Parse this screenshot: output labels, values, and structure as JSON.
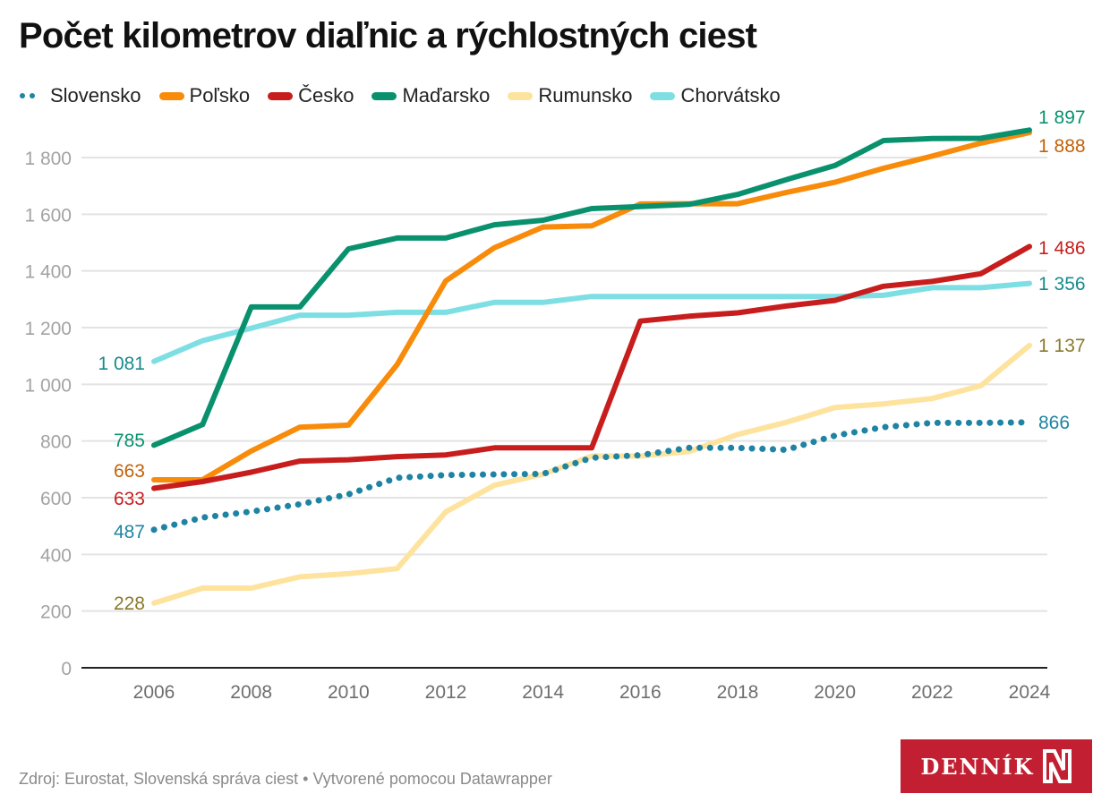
{
  "title": "Počet kilometrov diaľnic a rýchlostných ciest",
  "footer": "Zdroj: Eurostat, Slovenská správa ciest • Vytvorené pomocou Datawrapper",
  "logo": {
    "text": "DENNÍK",
    "glyph": "N",
    "background": "#c22032"
  },
  "legend": [
    {
      "name": "Slovensko",
      "color": "#1f84a3",
      "style": "dotted"
    },
    {
      "name": "Poľsko",
      "color": "#f88b0a",
      "style": "solid"
    },
    {
      "name": "Česko",
      "color": "#c71e1d",
      "style": "solid"
    },
    {
      "name": "Maďarsko",
      "color": "#09916e",
      "style": "solid"
    },
    {
      "name": "Rumunsko",
      "color": "#fee39e",
      "style": "solid"
    },
    {
      "name": "Chorvátsko",
      "color": "#7ddfe3",
      "style": "solid"
    }
  ],
  "chart_data": {
    "type": "line",
    "title": "Počet kilometrov diaľnic a rýchlostných ciest",
    "xlabel": "",
    "ylabel": "",
    "x": [
      2006,
      2007,
      2008,
      2009,
      2010,
      2011,
      2012,
      2013,
      2014,
      2015,
      2016,
      2017,
      2018,
      2019,
      2020,
      2021,
      2022,
      2023,
      2024
    ],
    "x_ticks": [
      "2006",
      "2008",
      "2010",
      "2012",
      "2014",
      "2016",
      "2018",
      "2020",
      "2022",
      "2024"
    ],
    "y_ticks": [
      "0",
      "200",
      "400",
      "600",
      "800",
      "1 000",
      "1 200",
      "1 400",
      "1 600",
      "1 800"
    ],
    "ylim": [
      0,
      1900
    ],
    "grid": true,
    "legend_position": "top",
    "series": [
      {
        "name": "Slovensko",
        "color": "#1f84a3",
        "label_color": "#1f84a3",
        "dotted": true,
        "values": [
          487,
          530,
          551,
          577,
          612,
          670,
          680,
          682,
          684,
          741,
          750,
          776,
          776,
          769,
          819,
          849,
          864,
          864,
          866
        ],
        "start_label": "487",
        "end_label": "866"
      },
      {
        "name": "Poľsko",
        "color": "#f88b0a",
        "label_color": "#c36109",
        "dotted": false,
        "values": [
          663,
          663,
          765,
          849,
          856,
          1070,
          1365,
          1482,
          1555,
          1559,
          1636,
          1637,
          1637,
          1677,
          1713,
          1762,
          1805,
          1851,
          1888
        ],
        "start_label": "663",
        "end_label": "1 888"
      },
      {
        "name": "Česko",
        "color": "#c71e1d",
        "label_color": "#c71e1d",
        "dotted": false,
        "values": [
          633,
          657,
          690,
          729,
          734,
          745,
          751,
          776,
          776,
          776,
          1223,
          1240,
          1252,
          1276,
          1296,
          1346,
          1363,
          1390,
          1486
        ],
        "start_label": "633",
        "end_label": "1 486"
      },
      {
        "name": "Maďarsko",
        "color": "#09916e",
        "label_color": "#09916e",
        "dotted": false,
        "values": [
          785,
          858,
          1273,
          1273,
          1478,
          1516,
          1516,
          1563,
          1579,
          1620,
          1627,
          1635,
          1670,
          1722,
          1772,
          1860,
          1867,
          1868,
          1897
        ],
        "start_label": "785",
        "end_label": "1 897"
      },
      {
        "name": "Rumunsko",
        "color": "#fee39e",
        "label_color": "#8a7a2c",
        "dotted": false,
        "values": [
          228,
          281,
          281,
          321,
          332,
          350,
          550,
          644,
          683,
          747,
          747,
          763,
          823,
          866,
          918,
          931,
          950,
          995,
          1137
        ],
        "start_label": "228",
        "end_label": "1 137"
      },
      {
        "name": "Chorvátsko",
        "color": "#7ddfe3",
        "label_color": "#188a8d",
        "dotted": false,
        "values": [
          1081,
          1154,
          1198,
          1244,
          1244,
          1254,
          1254,
          1289,
          1289,
          1310,
          1310,
          1310,
          1310,
          1310,
          1310,
          1314,
          1341,
          1341,
          1356
        ],
        "start_label": "1 081",
        "end_label": "1 356"
      }
    ]
  }
}
